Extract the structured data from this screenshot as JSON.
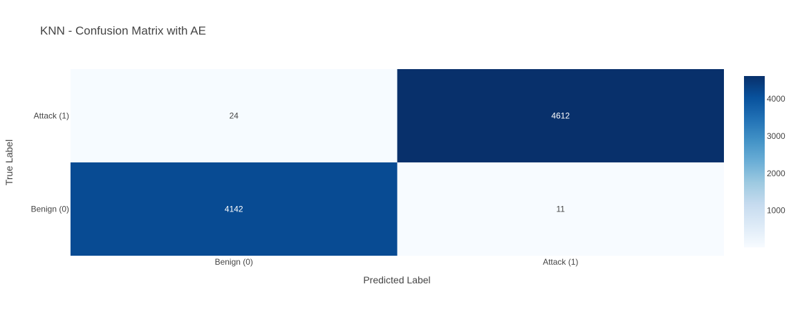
{
  "chart_data": {
    "type": "heatmap",
    "title": "KNN - Confusion Matrix with AE",
    "xlabel": "Predicted Label",
    "ylabel": "True Label",
    "x_categories": [
      "Benign (0)",
      "Attack (1)"
    ],
    "y_categories_top_to_bottom": [
      "Attack (1)",
      "Benign (0)"
    ],
    "cells": [
      {
        "true": "Attack (1)",
        "predicted": "Benign (0)",
        "value": 24
      },
      {
        "true": "Attack (1)",
        "predicted": "Attack (1)",
        "value": 4612
      },
      {
        "true": "Benign (0)",
        "predicted": "Benign (0)",
        "value": 4142
      },
      {
        "true": "Benign (0)",
        "predicted": "Attack (1)",
        "value": 11
      }
    ],
    "colorscale": "Blues",
    "color_range": [
      11,
      4612
    ],
    "colorbar_ticks": [
      1000,
      2000,
      3000,
      4000
    ],
    "colors": {
      "low": "#f7fbff",
      "high": "#08306b",
      "text_color": "#444444",
      "label_dark": "#444444",
      "label_light": "#ffffff"
    },
    "grid": false,
    "legend": "colorbar-right"
  }
}
